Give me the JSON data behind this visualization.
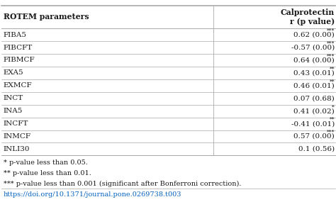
{
  "col_headers": [
    "ROTEM parameters",
    "Calprotectin\nr (p value)"
  ],
  "rows": [
    [
      "FIBA5",
      "0.62 (0.00)",
      "***"
    ],
    [
      "FIBCFT",
      "-0.57 (0.00)",
      "***"
    ],
    [
      "FIBMCF",
      "0.64 (0.00)",
      "***"
    ],
    [
      "EXA5",
      "0.43 (0.01)",
      "**"
    ],
    [
      "EXMCF",
      "0.46 (0.01)",
      "**"
    ],
    [
      "INCT",
      "0.07 (0.68)",
      ""
    ],
    [
      "INA5",
      "0.41 (0.02)",
      "*"
    ],
    [
      "INCFT",
      "-0.41 (0.01)",
      "**"
    ],
    [
      "INMCF",
      "0.57 (0.00)",
      "***"
    ],
    [
      "INLI30",
      "0.1 (0.56)",
      ""
    ]
  ],
  "footnotes": [
    [
      "* ",
      "p-value less than 0.05."
    ],
    [
      "** ",
      "p-value less than 0.01."
    ],
    [
      "*** ",
      "p-value less than 0.001 (significant after Bonferroni correction)."
    ]
  ],
  "doi": "https://doi.org/10.1371/journal.pone.0269738.t003",
  "border_color": "#aaaaaa",
  "text_color": "#1a1a1a",
  "doi_color": "#0563C1",
  "header_fontsize": 7.8,
  "cell_fontsize": 7.5,
  "footnote_fontsize": 7.0,
  "doi_fontsize": 7.0,
  "col_split": 0.635
}
